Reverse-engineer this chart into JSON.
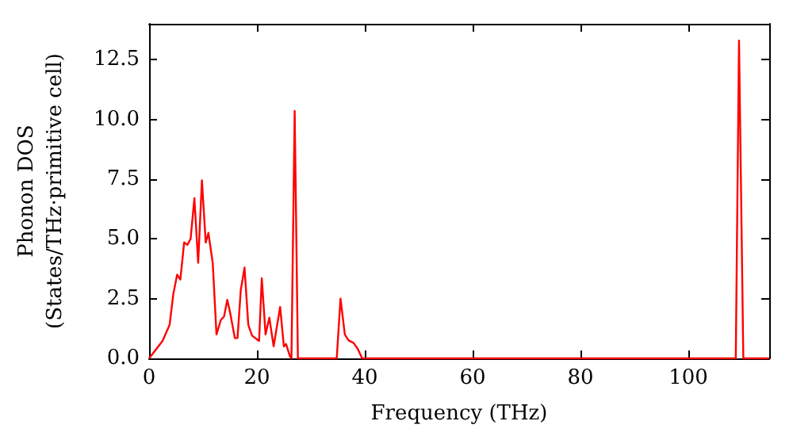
{
  "chart_data": {
    "type": "line",
    "xlabel": "Frequency (THz)",
    "ylabel": "Phonon DOS\n(States/THz·primitive cell)",
    "xlim": [
      0,
      115
    ],
    "ylim": [
      0,
      14
    ],
    "xticks": [
      0,
      20,
      40,
      60,
      80,
      100
    ],
    "yticks": [
      {
        "value": 0,
        "label": "0.0"
      },
      {
        "value": 2.5,
        "label": "2.5"
      },
      {
        "value": 5,
        "label": "5.0"
      },
      {
        "value": 7.5,
        "label": "7.5"
      },
      {
        "value": 10,
        "label": "10.0"
      },
      {
        "value": 12.5,
        "label": "12.5"
      }
    ],
    "grid": false,
    "marker": "none",
    "line_style": "solid",
    "series": [
      {
        "color": "#ff0000",
        "x": [
          0,
          2.5,
          3.8,
          4.5,
          5.2,
          5.8,
          6.5,
          7.1,
          7.7,
          8.4,
          9.1,
          9.8,
          10.5,
          11.0,
          11.8,
          12.5,
          13.3,
          13.9,
          14.5,
          15.0,
          15.9,
          16.4,
          17.0,
          17.7,
          18.4,
          19.1,
          20.4,
          20.9,
          21.6,
          22.3,
          23.1,
          24.3,
          25.0,
          25.4,
          26.1,
          26.4,
          27.0,
          27.6,
          34.8,
          35.5,
          36.3,
          37.0,
          37.9,
          38.7,
          39.5,
          108.8,
          109.4,
          110.2,
          115
        ],
        "values": [
          0,
          0.73,
          1.4,
          2.7,
          3.5,
          3.3,
          4.85,
          4.75,
          5.0,
          6.7,
          4.0,
          7.45,
          4.85,
          5.25,
          4.0,
          1.0,
          1.6,
          1.75,
          2.45,
          1.95,
          0.85,
          0.85,
          2.85,
          3.8,
          1.4,
          0.95,
          0.73,
          3.35,
          1.0,
          1.7,
          0.5,
          2.15,
          0.5,
          0.6,
          0.1,
          0,
          10.35,
          0,
          0,
          2.5,
          1.0,
          0.75,
          0.65,
          0.4,
          0,
          0,
          13.3,
          0,
          0
        ]
      }
    ]
  }
}
